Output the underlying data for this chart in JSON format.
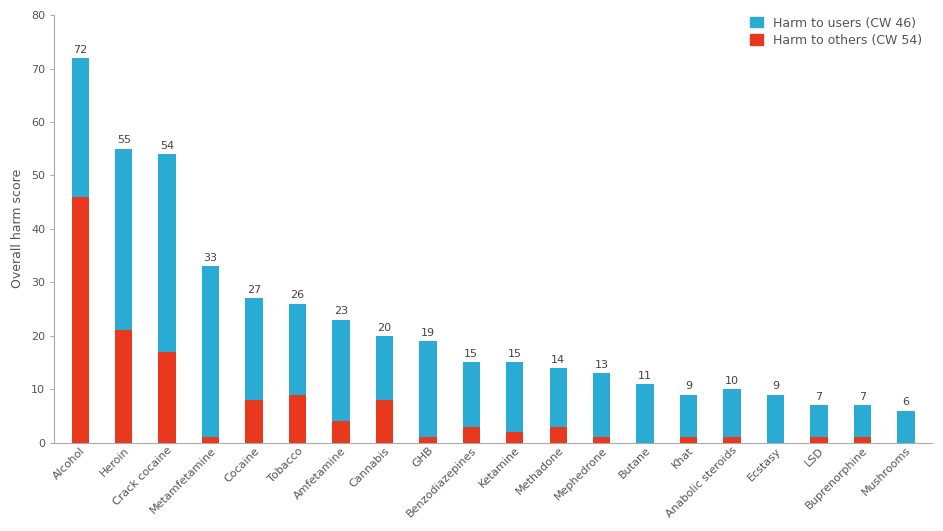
{
  "categories": [
    "Alcohol",
    "Heroin",
    "Crack cocaine",
    "Metamfetamine",
    "Cocaine",
    "Tobacco",
    "Amfetamine",
    "Cannabis",
    "GHB",
    "Benzodiazepines",
    "Ketamine",
    "Methadone",
    "Mephedrone",
    "Butane",
    "Khat",
    "Anabolic steroids",
    "Ecstasy",
    "LSD",
    "Buprenorphine",
    "Mushrooms"
  ],
  "total": [
    72,
    55,
    54,
    33,
    27,
    26,
    23,
    20,
    19,
    15,
    15,
    14,
    13,
    11,
    9,
    10,
    9,
    7,
    7,
    6
  ],
  "harm_to_others": [
    46,
    21,
    17,
    1,
    8,
    9,
    4,
    8,
    1,
    3,
    2,
    3,
    1,
    0,
    1,
    1,
    0,
    1,
    1,
    0
  ],
  "color_users": "#29ABD4",
  "color_others": "#E8381E",
  "legend_users": "Harm to users (CW 46)",
  "legend_others": "Harm to others (CW 54)",
  "ylabel": "Overall harm score",
  "ylim": [
    0,
    80
  ],
  "yticks": [
    0,
    10,
    20,
    30,
    40,
    50,
    60,
    70,
    80
  ],
  "background_color": "#FFFFFF",
  "label_fontsize": 9,
  "tick_fontsize": 8,
  "annotation_fontsize": 8,
  "bar_width": 0.4
}
